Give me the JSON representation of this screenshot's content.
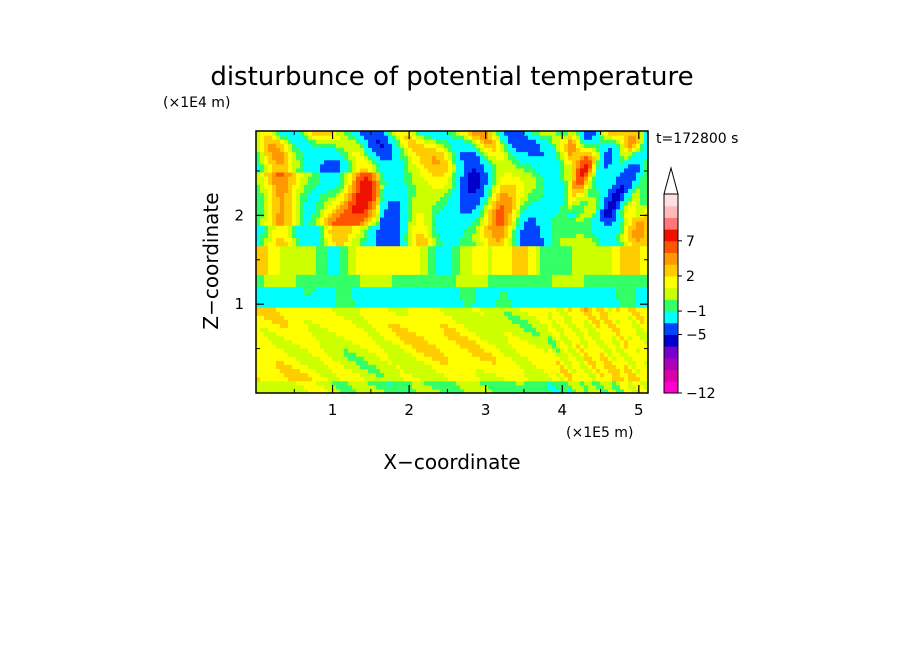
{
  "chart_data": {
    "type": "heatmap",
    "title": "disturbunce of potential temperature",
    "xlabel": "X−coordinate",
    "ylabel": "Z−coordinate",
    "x_unit": "(×1E5 m)",
    "y_unit": "(×1E4 m)",
    "time_label": "t=172800 s",
    "xlim": [
      0,
      5.12
    ],
    "ylim": [
      0,
      2.95
    ],
    "x_ticks": [
      "1",
      "2",
      "3",
      "4",
      "5"
    ],
    "x_tick_values": [
      1,
      2,
      3,
      4,
      5
    ],
    "y_ticks": [
      "1",
      "2"
    ],
    "y_tick_values": [
      1,
      2
    ],
    "colorbar": {
      "extend": "max",
      "boundary_labels": [
        "−12",
        "−5",
        "−1",
        "2",
        "7"
      ],
      "colors_bottom_to_top": [
        "#ff00cc",
        "#dd00aa",
        "#aa00bb",
        "#7700cc",
        "#0000cc",
        "#0044ff",
        "#00ffff",
        "#33ff66",
        "#ccff00",
        "#ffff00",
        "#ffcc00",
        "#ff9900",
        "#ff5500",
        "#ee1100",
        "#ff7777",
        "#ffbbbb",
        "#ffe0e0"
      ]
    },
    "grid": false,
    "legend": "right"
  }
}
